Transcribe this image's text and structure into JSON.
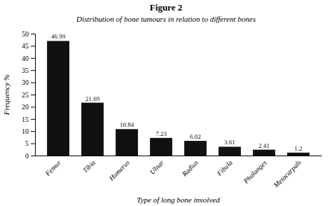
{
  "chart_data": {
    "type": "bar",
    "title": "Figure 2",
    "subtitle": "Distribution of bone tumours in relation to different bones",
    "categories": [
      "Femur",
      "Tibia",
      "Humerus",
      "Ulnar",
      "Radius",
      "Fibula",
      "Phalanges",
      "Metacarpals"
    ],
    "values": [
      46.99,
      21.69,
      10.84,
      7.23,
      6.02,
      3.61,
      2.41,
      1.2
    ],
    "color": "#111111",
    "xlabel": "Type of long bone involved",
    "ylabel": "Frequency %",
    "ylim": [
      0,
      50
    ],
    "yticks": [
      0,
      5,
      10,
      15,
      20,
      25,
      30,
      35,
      40,
      45,
      50
    ],
    "grid": false,
    "data_labels": true
  }
}
